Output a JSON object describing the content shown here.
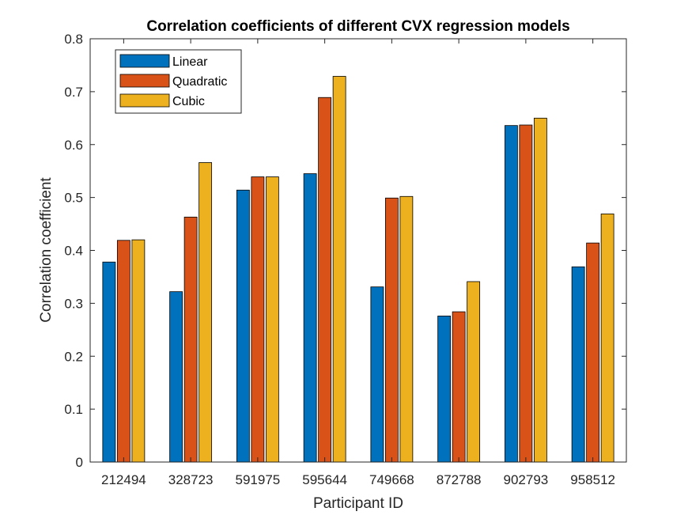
{
  "chart_data": {
    "type": "bar",
    "title": "Correlation coefficients of different CVX regression models",
    "xlabel": "Participant ID",
    "ylabel": "Correlation coefficient",
    "ylim": [
      0,
      0.8
    ],
    "yticks": [
      "0",
      "0.1",
      "0.2",
      "0.3",
      "0.4",
      "0.5",
      "0.6",
      "0.7",
      "0.8"
    ],
    "categories": [
      "212494",
      "328723",
      "591975",
      "595644",
      "749668",
      "872788",
      "902793",
      "958512"
    ],
    "series": [
      {
        "name": "Linear",
        "color": "#0072BD",
        "values": [
          0.378,
          0.322,
          0.514,
          0.545,
          0.331,
          0.276,
          0.636,
          0.369
        ]
      },
      {
        "name": "Quadratic",
        "color": "#D95319",
        "values": [
          0.419,
          0.463,
          0.539,
          0.689,
          0.499,
          0.284,
          0.637,
          0.414
        ]
      },
      {
        "name": "Cubic",
        "color": "#EDB120",
        "values": [
          0.42,
          0.566,
          0.539,
          0.729,
          0.502,
          0.341,
          0.65,
          0.469
        ]
      }
    ],
    "grid": false,
    "legend_position": "top-left"
  }
}
